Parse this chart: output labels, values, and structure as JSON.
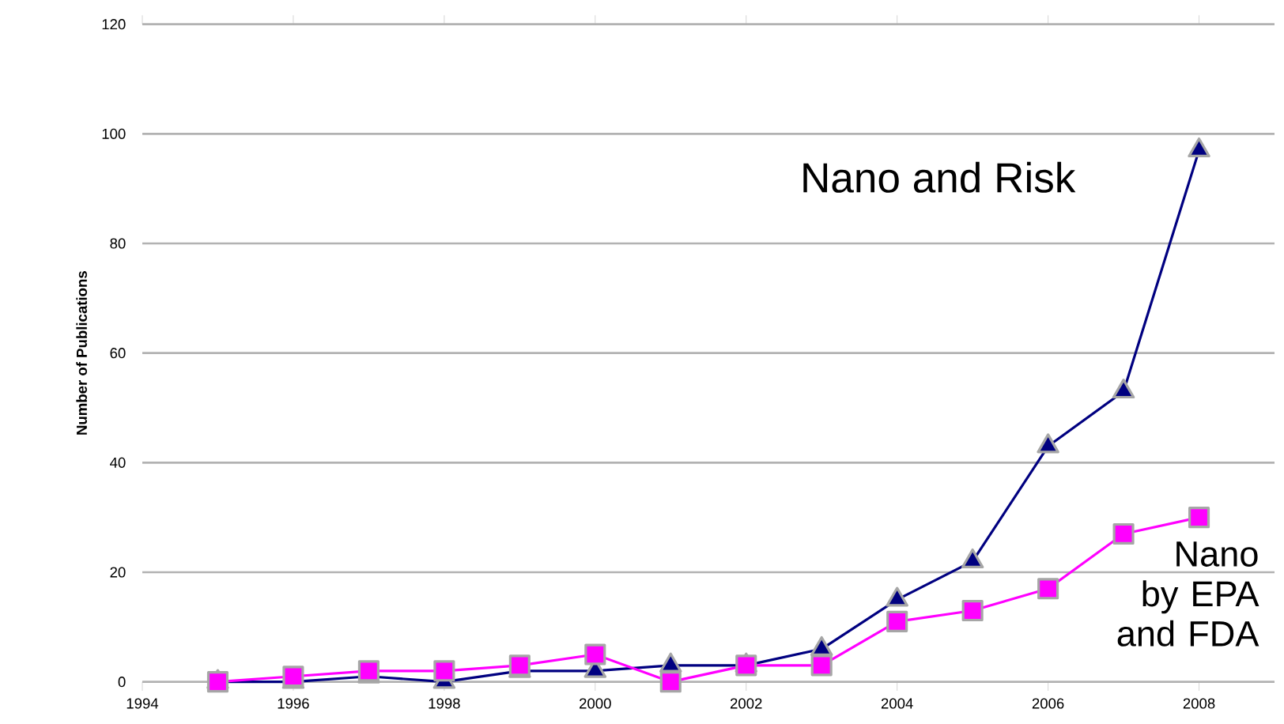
{
  "chart_data": {
    "type": "line",
    "ylabel": "Number of Publications",
    "x": [
      1995,
      1996,
      1997,
      1998,
      1999,
      2000,
      2001,
      2002,
      2003,
      2004,
      2005,
      2006,
      2007,
      2008
    ],
    "series": [
      {
        "name": "Nano and Risk",
        "color": "#000080",
        "marker": "triangle",
        "values": [
          0,
          0,
          1,
          0,
          2,
          2,
          3,
          3,
          6,
          15,
          22,
          43,
          53,
          97
        ]
      },
      {
        "name": "Nano by EPA and FDA",
        "color": "#ff00ff",
        "marker": "square",
        "values": [
          0,
          1,
          2,
          2,
          3,
          5,
          0,
          3,
          3,
          11,
          13,
          17,
          27,
          30
        ]
      }
    ],
    "xlim": [
      1994,
      2009
    ],
    "xticks": [
      1994,
      1996,
      1998,
      2000,
      2002,
      2004,
      2006,
      2008
    ],
    "ylim": [
      0,
      120
    ],
    "yticks": [
      0,
      20,
      40,
      60,
      80,
      100,
      120
    ],
    "grid": "y",
    "line_style": "solid"
  }
}
